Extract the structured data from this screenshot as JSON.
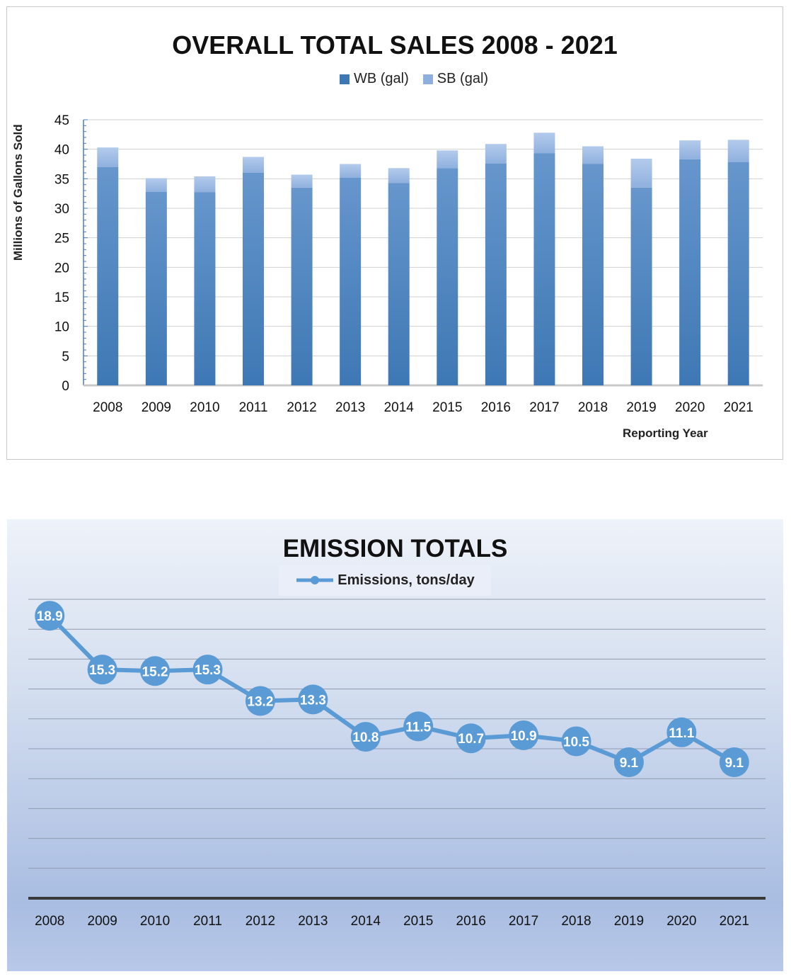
{
  "sales_chart": {
    "chart_data": {
      "type": "bar",
      "stacked": true,
      "title": "OVERALL TOTAL SALES 2008 - 2021",
      "categories": [
        "2008",
        "2009",
        "2010",
        "2011",
        "2012",
        "2013",
        "2014",
        "2015",
        "2016",
        "2017",
        "2018",
        "2019",
        "2020",
        "2021"
      ],
      "series": [
        {
          "name": "WB (gal)",
          "color": "#3e78b4",
          "values": [
            37.0,
            32.8,
            32.7,
            36.0,
            33.5,
            35.2,
            34.3,
            36.8,
            37.6,
            39.3,
            37.5,
            33.5,
            38.3,
            37.8
          ]
        },
        {
          "name": "SB (gal)",
          "color": "#8fb0de",
          "values": [
            3.3,
            2.3,
            2.7,
            2.7,
            2.2,
            2.3,
            2.5,
            3.0,
            3.3,
            3.5,
            3.0,
            4.9,
            3.2,
            3.8
          ]
        }
      ],
      "ylabel": "Millions of Gallons Sold",
      "xlabel": "Reporting Year",
      "yticks": [
        "0",
        "5",
        "10",
        "15",
        "20",
        "25",
        "30",
        "35",
        "40",
        "45"
      ],
      "ylim": [
        0,
        45
      ],
      "grid": true,
      "legend": "top"
    }
  },
  "emission_chart": {
    "chart_data": {
      "type": "line",
      "title": "EMISSION TOTALS",
      "categories": [
        "2008",
        "2009",
        "2010",
        "2011",
        "2012",
        "2013",
        "2014",
        "2015",
        "2016",
        "2017",
        "2018",
        "2019",
        "2020",
        "2021"
      ],
      "series": [
        {
          "name": "Emissions, tons/day",
          "color": "#5b9bd5",
          "values": [
            18.9,
            15.3,
            15.2,
            15.3,
            13.2,
            13.3,
            10.8,
            11.5,
            10.7,
            10.9,
            10.5,
            9.1,
            11.1,
            9.1
          ],
          "labels": [
            "18.9",
            "15.3",
            "15.2",
            "15.3",
            "13.2",
            "13.3",
            "10.8",
            "11.5",
            "10.7",
            "10.9",
            "10.5",
            "9.1",
            "11.1",
            "9.1"
          ]
        }
      ],
      "ylim": [
        0,
        20
      ],
      "grid": true,
      "legend": "top"
    }
  }
}
